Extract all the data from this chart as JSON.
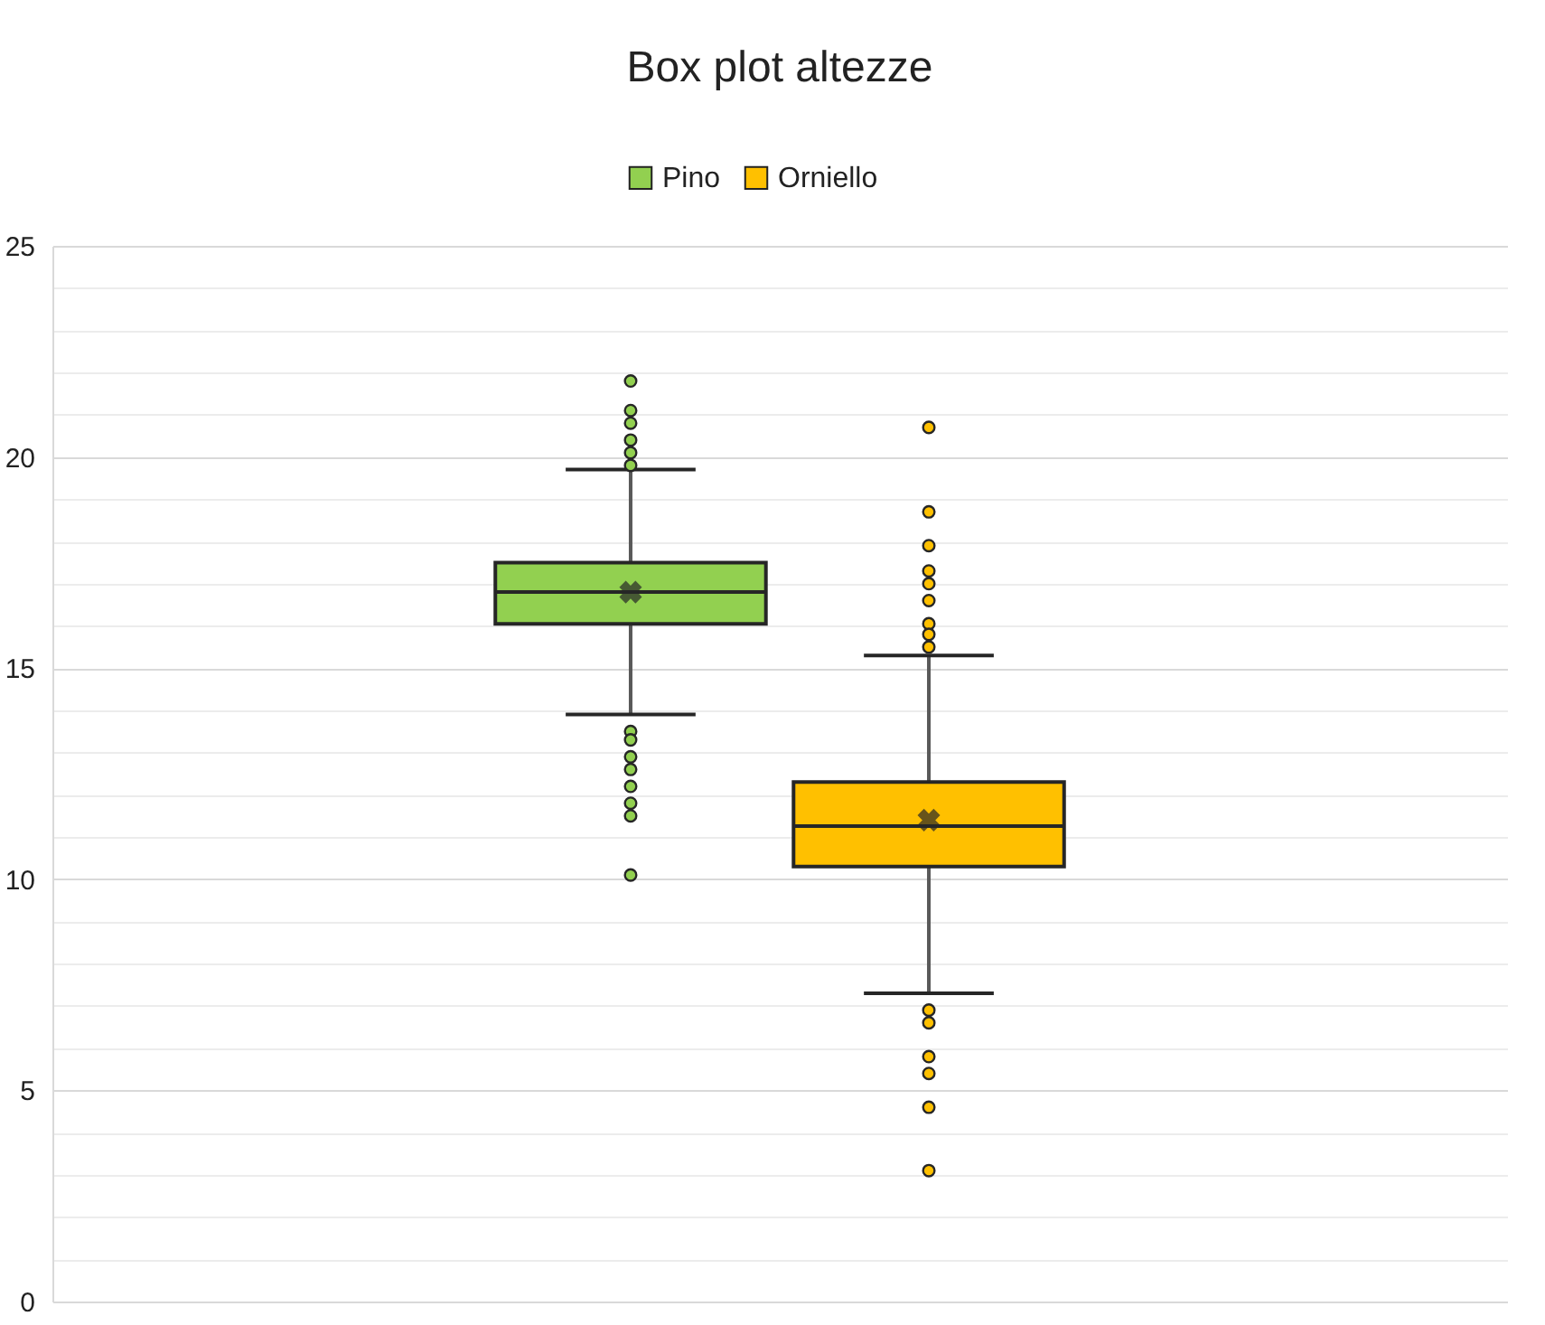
{
  "chart_data": {
    "type": "box",
    "title": "Box plot altezze",
    "categories": [
      null
    ],
    "series": [
      {
        "name": "Pino",
        "color": "#92d050",
        "boxes": [
          {
            "low": 13.9,
            "q1": 16.05,
            "median": 16.8,
            "q3": 17.5,
            "high": 19.7,
            "mean": 16.8,
            "outliers": [
              21.8,
              21.1,
              20.8,
              20.4,
              20.1,
              19.8,
              13.5,
              13.3,
              12.9,
              12.6,
              12.2,
              11.8,
              11.5,
              10.1
            ]
          }
        ]
      },
      {
        "name": "Orniello",
        "color": "#ffc000",
        "boxes": [
          {
            "low": 7.3,
            "q1": 10.3,
            "median": 11.26,
            "q3": 12.3,
            "high": 15.3,
            "mean": 11.4,
            "outliers": [
              20.7,
              18.7,
              17.9,
              17.3,
              17.0,
              16.6,
              16.05,
              15.8,
              15.5,
              6.9,
              6.6,
              5.8,
              5.4,
              4.6,
              3.1
            ]
          }
        ]
      }
    ],
    "ylim": [
      0,
      25
    ],
    "yticks": [
      0,
      {
        "value": 1,
        "label": null
      },
      {
        "value": 2,
        "label": null
      },
      {
        "value": 3,
        "label": null
      },
      {
        "value": 4,
        "label": null
      },
      5,
      {
        "value": 6,
        "label": null
      },
      {
        "value": 7,
        "label": null
      },
      {
        "value": 8,
        "label": null
      },
      {
        "value": 9,
        "label": null
      },
      10,
      {
        "value": 11,
        "label": null
      },
      {
        "value": 12,
        "label": null
      },
      {
        "value": 13,
        "label": null
      },
      {
        "value": 14,
        "label": null
      },
      15,
      {
        "value": 16,
        "label": null
      },
      {
        "value": 17,
        "label": null
      },
      {
        "value": 18,
        "label": null
      },
      {
        "value": 19,
        "label": null
      },
      20,
      {
        "value": 21,
        "label": null
      },
      {
        "value": 22,
        "label": null
      },
      {
        "value": 23,
        "label": null
      },
      {
        "value": 24,
        "label": null
      },
      25
    ],
    "grid": true,
    "legend": "top",
    "marker": "circle"
  }
}
